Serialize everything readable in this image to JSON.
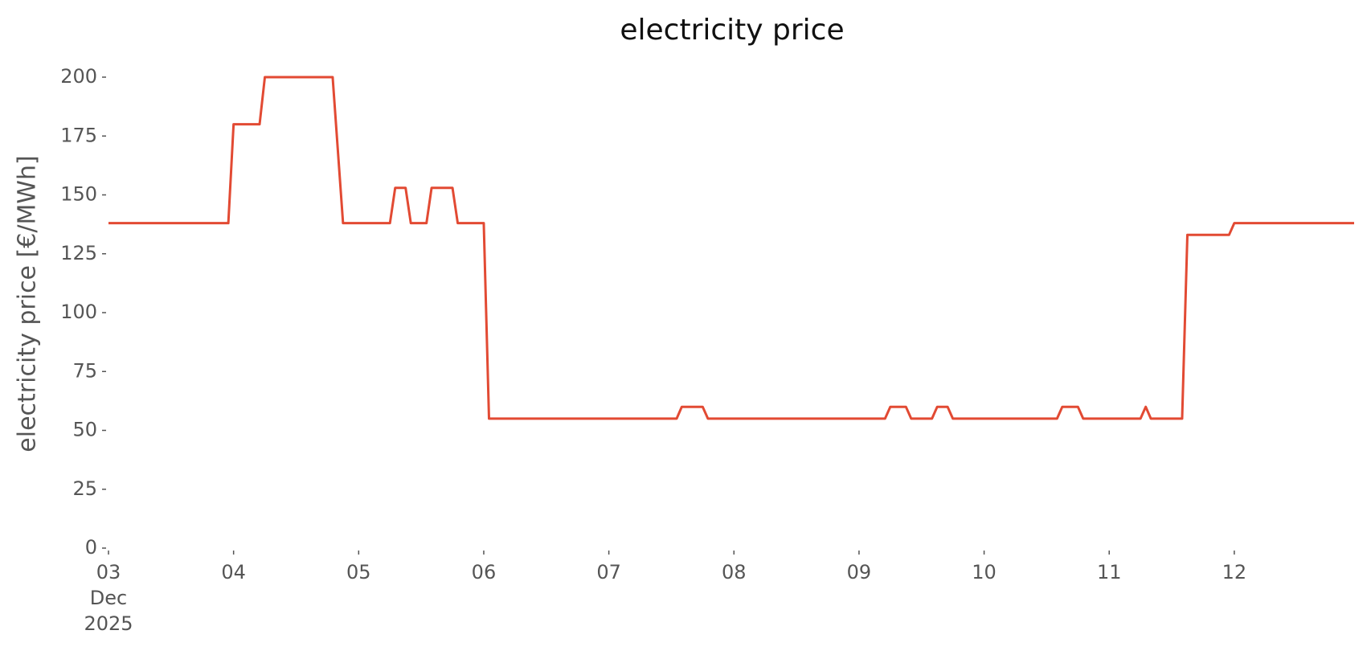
{
  "chart_data": {
    "type": "line",
    "title": "electricity price",
    "y_label": "electricity price [€/MWh]",
    "x": [
      3.0,
      3.958,
      4.0,
      4.208,
      4.25,
      4.792,
      4.875,
      5.25,
      5.292,
      5.375,
      5.417,
      5.542,
      5.583,
      5.75,
      5.792,
      6.0,
      6.042,
      7.542,
      7.583,
      7.75,
      7.792,
      9.208,
      9.25,
      9.375,
      9.417,
      9.583,
      9.625,
      9.708,
      9.75,
      10.583,
      10.625,
      10.75,
      10.792,
      11.25,
      11.292,
      11.333,
      11.583,
      11.625,
      11.958,
      12.0,
      12.958
    ],
    "series": [
      {
        "name": "electricity price",
        "color": "#e24a33",
        "values": [
          138,
          138,
          180,
          180,
          200,
          200,
          138,
          138,
          153,
          153,
          138,
          138,
          153,
          153,
          138,
          138,
          55,
          55,
          60,
          60,
          55,
          55,
          60,
          60,
          55,
          55,
          60,
          60,
          55,
          55,
          60,
          60,
          55,
          55,
          60,
          55,
          55,
          133,
          133,
          138,
          138
        ]
      }
    ],
    "xlim": [
      3,
      12.958
    ],
    "xticks": [
      {
        "value": 3,
        "label": "03\nDec\n2025"
      },
      {
        "value": 4,
        "label": "04"
      },
      {
        "value": 5,
        "label": "05"
      },
      {
        "value": 6,
        "label": "06"
      },
      {
        "value": 7,
        "label": "07"
      },
      {
        "value": 8,
        "label": "08"
      },
      {
        "value": 9,
        "label": "09"
      },
      {
        "value": 10,
        "label": "10"
      },
      {
        "value": 11,
        "label": "11"
      },
      {
        "value": 12,
        "label": "12"
      }
    ],
    "ylim": [
      0,
      200
    ],
    "yticks": [
      0,
      25,
      50,
      75,
      100,
      125,
      150,
      175,
      200
    ],
    "grid": false
  }
}
